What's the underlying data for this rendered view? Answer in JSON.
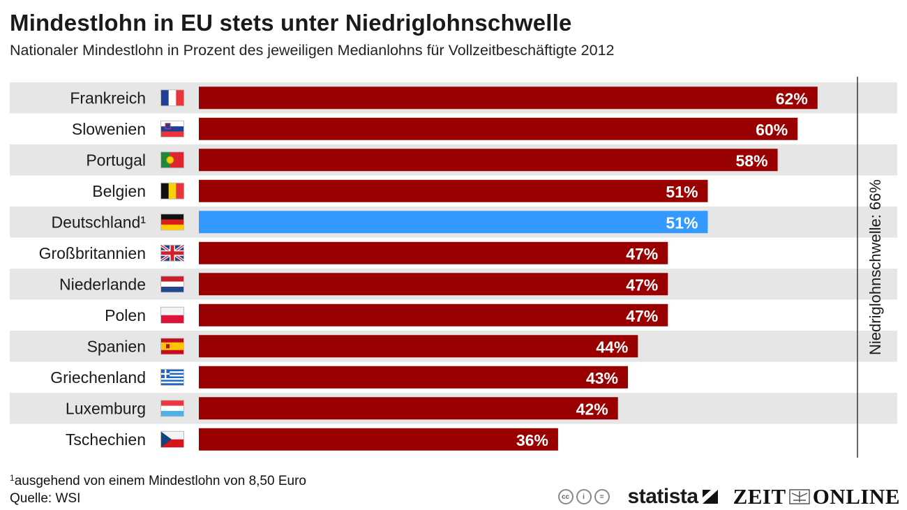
{
  "header": {
    "title": "Mindestlohn in EU stets unter Niedriglohnschwelle",
    "subtitle": "Nationaler Mindestlohn in Prozent des jeweiligen Medianlohns für Vollzeitbeschäftigte 2012"
  },
  "chart_data": {
    "type": "bar",
    "orientation": "horizontal",
    "categories": [
      "Frankreich",
      "Slowenien",
      "Portugal",
      "Belgien",
      "Deutschland¹",
      "Großbritannien",
      "Niederlande",
      "Polen",
      "Spanien",
      "Griechenland",
      "Luxemburg",
      "Tschechien"
    ],
    "values": [
      62,
      60,
      58,
      51,
      51,
      47,
      47,
      47,
      44,
      43,
      42,
      36
    ],
    "value_labels": [
      "62%",
      "60%",
      "58%",
      "51%",
      "51%",
      "47%",
      "47%",
      "47%",
      "44%",
      "43%",
      "42%",
      "36%"
    ],
    "flags": [
      "flag-fr",
      "flag-si",
      "flag-pt",
      "flag-be",
      "flag-de",
      "flag-gb",
      "flag-nl",
      "flag-pl",
      "flag-es",
      "flag-gr",
      "flag-lu",
      "flag-cz"
    ],
    "highlight_index": 4,
    "bar_color": "#990000",
    "highlight_color": "#3399ff",
    "xlim": [
      0,
      66
    ],
    "threshold": {
      "value": 66,
      "label": "Niedriglohnschwelle: 66%"
    }
  },
  "footer": {
    "footnote_mark": "1",
    "footnote": "ausgehend von einem Mindestlohn von 8,50 Euro",
    "source": "Quelle: WSI",
    "brand_statista": "statista",
    "brand_zeit_left": "ZEIT",
    "brand_zeit_right": "ONLINE",
    "cc_icons": [
      "cc",
      "by",
      "nd"
    ]
  }
}
